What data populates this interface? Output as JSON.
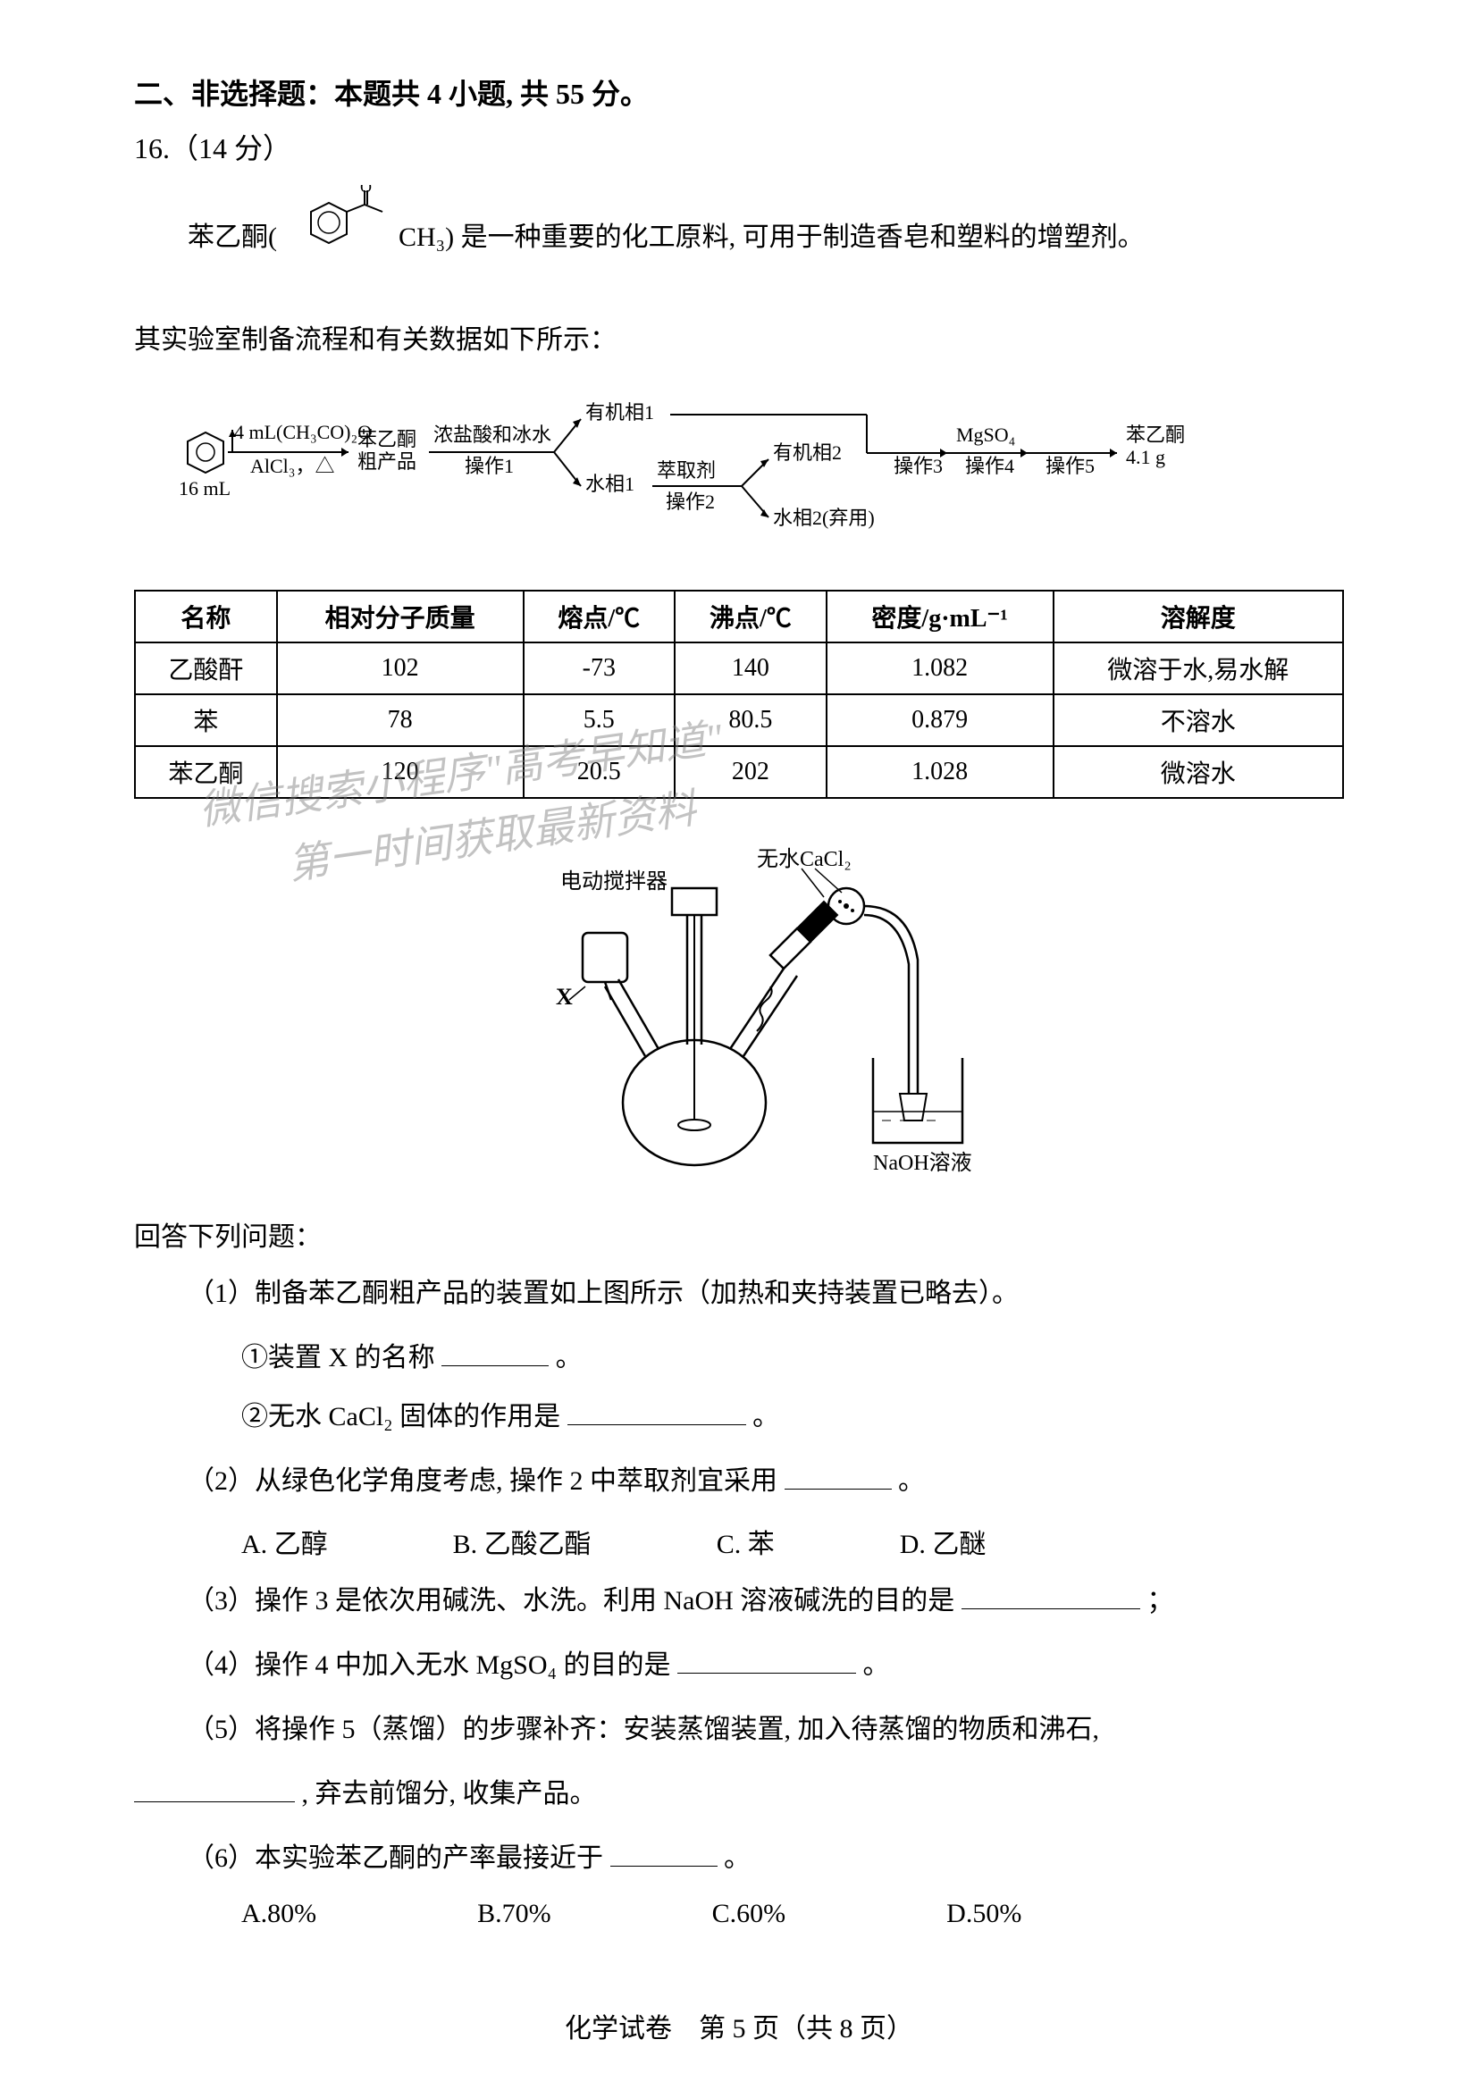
{
  "section": {
    "header": "二、非选择题：本题共 4 小题, 共 55 分。",
    "question_no": "16.（14 分）"
  },
  "intro": {
    "prefix": "苯乙酮(",
    "suffix": "CH₃) 是一种重要的化工原料, 可用于制造香皂和塑料的增塑剂。",
    "molecule_O": "O"
  },
  "sub_header": "其实验室制备流程和有关数据如下所示：",
  "flow": {
    "start_benzene": "16 mL",
    "reagent1_top": "4 mL(CH₃CO)₂O",
    "reagent1_bot": "AlCl₃，△",
    "crude": "苯乙酮粗产品",
    "op1_reagent": "浓盐酸和冰水",
    "op1": "操作1",
    "organic1": "有机相1",
    "water1": "水相1",
    "extract": "萃取剂",
    "op2": "操作2",
    "organic2": "有机相2",
    "water2": "水相2(弃用)",
    "op3": "操作3",
    "mgso4": "MgSO₄",
    "op4": "操作4",
    "op5": "操作5",
    "product": "苯乙酮 4.1 g"
  },
  "table": {
    "columns": [
      "名称",
      "相对分子质量",
      "熔点/℃",
      "沸点/℃",
      "密度/g·mL⁻¹",
      "溶解度"
    ],
    "rows": [
      [
        "乙酸酐",
        "102",
        "-73",
        "140",
        "1.082",
        "微溶于水,易水解"
      ],
      [
        "苯",
        "78",
        "5.5",
        "80.5",
        "0.879",
        "不溶水"
      ],
      [
        "苯乙酮",
        "120",
        "20.5",
        "202",
        "1.028",
        "微溶水"
      ]
    ]
  },
  "apparatus": {
    "label_cacl2": "无水CaCl₂",
    "label_stirrer": "电动搅拌器",
    "label_x": "X",
    "label_naoh": "NaOH溶液"
  },
  "watermark": {
    "line1": "微信搜索小程序\"高考早知道\"",
    "line2": "第一时间获取最新资料"
  },
  "prompt": "回答下列问题：",
  "q1": {
    "text": "（1）制备苯乙酮粗产品的装置如上图所示（加热和夹持装置已略去）。",
    "sub1_prefix": "①装置 X 的名称",
    "sub1_suffix": "。",
    "sub2_prefix": "②无水 CaCl₂ 固体的作用是",
    "sub2_suffix": "。"
  },
  "q2": {
    "prefix": "（2）从绿色化学角度考虑, 操作 2 中萃取剂宜采用",
    "suffix": "。",
    "options": [
      "A. 乙醇",
      "B. 乙酸乙酯",
      "C. 苯",
      "D. 乙醚"
    ]
  },
  "q3": {
    "prefix": "（3）操作 3 是依次用碱洗、水洗。利用 NaOH 溶液碱洗的目的是",
    "suffix": "；"
  },
  "q4": {
    "prefix": "（4）操作 4 中加入无水 MgSO₄ 的目的是",
    "suffix": "。"
  },
  "q5": {
    "line1": "（5）将操作 5（蒸馏）的步骤补齐：安装蒸馏装置, 加入待蒸馏的物质和沸石,",
    "line2_suffix": ", 弃去前馏分, 收集产品。"
  },
  "q6": {
    "prefix": "（6）本实验苯乙酮的产率最接近于",
    "suffix": "。",
    "options": [
      "A.80%",
      "B.70%",
      "C.60%",
      "D.50%"
    ]
  },
  "footer": "化学试卷　第 5 页（共 8 页）"
}
